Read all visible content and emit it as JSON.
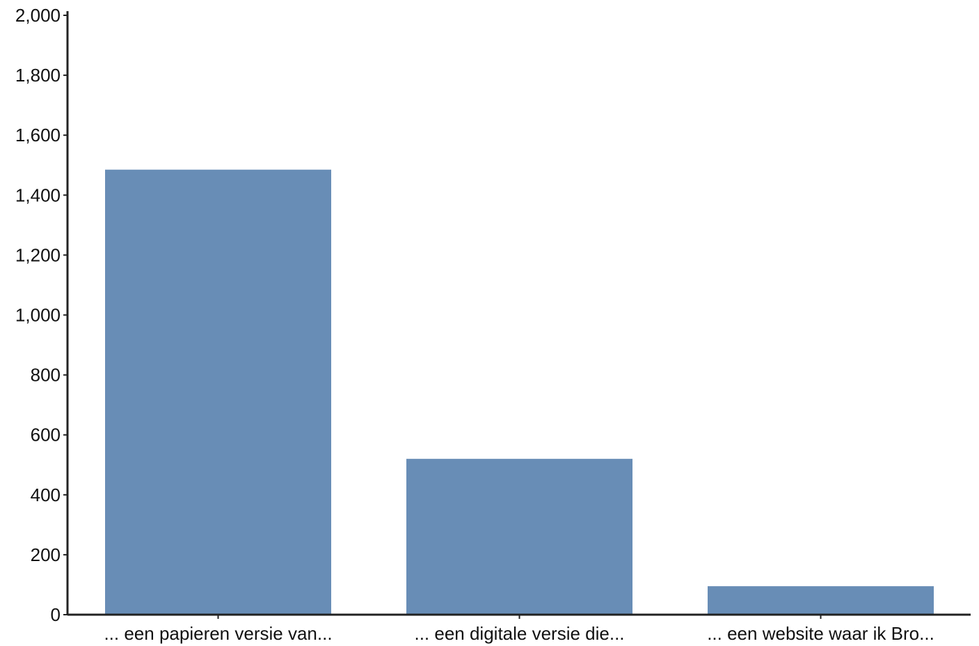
{
  "chart_data": {
    "type": "bar",
    "categories": [
      "... een papieren versie van...",
      "... een digitale versie die...",
      "... een website waar ik Bro..."
    ],
    "values": [
      1485,
      520,
      95
    ],
    "ylim": [
      0,
      2000
    ],
    "yticks": [
      0,
      200,
      400,
      600,
      800,
      1000,
      1200,
      1400,
      1600,
      1800,
      2000
    ],
    "ytick_labels": [
      "0",
      "200",
      "400",
      "600",
      "800",
      "1,000",
      "1,200",
      "1,400",
      "1,600",
      "1,800",
      "2,000"
    ],
    "bar_color": "#688db6",
    "axis_color": "#222222",
    "grid": false,
    "title": "",
    "xlabel": "",
    "ylabel": ""
  }
}
